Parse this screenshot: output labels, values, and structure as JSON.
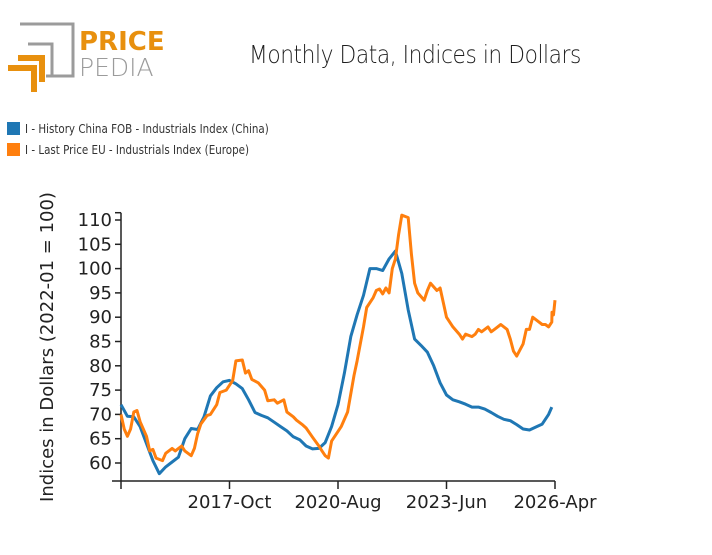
{
  "brand": {
    "line1": "PRICE",
    "line2": "PEDIA",
    "accent_color": "#e8900e",
    "gray_color": "#9b9b9b"
  },
  "chart_data": {
    "type": "line",
    "title": "Monthly Data, Indices in Dollars",
    "xlabel": "",
    "ylabel": "Indices in Dollars (2022-01 = 100)",
    "x_start": "2014-12",
    "x_end": "2026-04",
    "x_ticks": [
      {
        "label": "",
        "date": "2014-12"
      },
      {
        "label": "2017-Oct",
        "date": "2017-10"
      },
      {
        "label": "2020-Aug",
        "date": "2020-08"
      },
      {
        "label": "2023-Jun",
        "date": "2023-06"
      },
      {
        "label": "2026-Apr",
        "date": "2026-04"
      }
    ],
    "y_ticks": [
      60,
      65,
      70,
      75,
      80,
      85,
      90,
      95,
      100,
      105,
      110
    ],
    "ylim": [
      56.3,
      111.5
    ],
    "grid": false,
    "legend_position": "top-left",
    "series": [
      {
        "name": "I - History China FOB - Industrials Index (China)",
        "color": "#1f77b4",
        "points": [
          [
            "2014-12",
            72.0
          ],
          [
            "2015-02",
            69.6
          ],
          [
            "2015-04",
            69.5
          ],
          [
            "2015-06",
            67.5
          ],
          [
            "2015-08",
            64.0
          ],
          [
            "2015-10",
            60.5
          ],
          [
            "2015-12",
            57.8
          ],
          [
            "2016-02",
            59.2
          ],
          [
            "2016-04",
            60.2
          ],
          [
            "2016-06",
            61.2
          ],
          [
            "2016-08",
            65.0
          ],
          [
            "2016-10",
            67.1
          ],
          [
            "2016-12",
            66.9
          ],
          [
            "2017-02",
            69.5
          ],
          [
            "2017-04",
            73.8
          ],
          [
            "2017-06",
            75.5
          ],
          [
            "2017-08",
            76.7
          ],
          [
            "2017-10",
            77.0
          ],
          [
            "2017-12",
            76.3
          ],
          [
            "2018-02",
            75.3
          ],
          [
            "2018-04",
            73.0
          ],
          [
            "2018-06",
            70.4
          ],
          [
            "2018-08",
            69.8
          ],
          [
            "2018-10",
            69.3
          ],
          [
            "2018-12",
            68.4
          ],
          [
            "2019-02",
            67.5
          ],
          [
            "2019-04",
            66.6
          ],
          [
            "2019-06",
            65.4
          ],
          [
            "2019-08",
            64.8
          ],
          [
            "2019-10",
            63.5
          ],
          [
            "2019-12",
            62.9
          ],
          [
            "2020-02",
            63.0
          ],
          [
            "2020-04",
            64.2
          ],
          [
            "2020-06",
            67.5
          ],
          [
            "2020-08",
            72.0
          ],
          [
            "2020-10",
            78.5
          ],
          [
            "2020-12",
            86.0
          ],
          [
            "2021-02",
            90.5
          ],
          [
            "2021-04",
            94.5
          ],
          [
            "2021-06",
            100.0
          ],
          [
            "2021-08",
            100.0
          ],
          [
            "2021-10",
            99.6
          ],
          [
            "2021-12",
            102.0
          ],
          [
            "2022-02",
            103.6
          ],
          [
            "2022-04",
            99.0
          ],
          [
            "2022-06",
            91.5
          ],
          [
            "2022-08",
            85.5
          ],
          [
            "2022-10",
            84.2
          ],
          [
            "2022-12",
            82.8
          ],
          [
            "2023-02",
            80.0
          ],
          [
            "2023-04",
            76.5
          ],
          [
            "2023-06",
            74.0
          ],
          [
            "2023-08",
            73.0
          ],
          [
            "2023-10",
            72.6
          ],
          [
            "2023-12",
            72.1
          ],
          [
            "2024-02",
            71.5
          ],
          [
            "2024-04",
            71.5
          ],
          [
            "2024-06",
            71.1
          ],
          [
            "2024-08",
            70.4
          ],
          [
            "2024-10",
            69.6
          ],
          [
            "2024-12",
            69.0
          ],
          [
            "2025-02",
            68.7
          ],
          [
            "2025-04",
            67.9
          ],
          [
            "2025-06",
            67.0
          ],
          [
            "2025-08",
            66.8
          ],
          [
            "2025-10",
            67.4
          ],
          [
            "2025-12",
            68.0
          ],
          [
            "2026-02",
            70.0
          ],
          [
            "2026-03",
            71.5
          ]
        ]
      },
      {
        "name": "I - Last Price EU - Industrials Index (Europe)",
        "color": "#ff7f0e",
        "points": [
          [
            "2014-12",
            70.0
          ],
          [
            "2015-01",
            67.0
          ],
          [
            "2015-02",
            65.5
          ],
          [
            "2015-03",
            67.0
          ],
          [
            "2015-04",
            70.5
          ],
          [
            "2015-05",
            70.8
          ],
          [
            "2015-06",
            68.5
          ],
          [
            "2015-08",
            65.5
          ],
          [
            "2015-09",
            62.5
          ],
          [
            "2015-10",
            62.8
          ],
          [
            "2015-11",
            61.0
          ],
          [
            "2016-01",
            60.5
          ],
          [
            "2016-02",
            62.0
          ],
          [
            "2016-04",
            63.0
          ],
          [
            "2016-05",
            62.5
          ],
          [
            "2016-07",
            63.5
          ],
          [
            "2016-08",
            62.5
          ],
          [
            "2016-10",
            61.5
          ],
          [
            "2016-11",
            63.0
          ],
          [
            "2016-12",
            66.0
          ],
          [
            "2017-01",
            68.0
          ],
          [
            "2017-03",
            69.8
          ],
          [
            "2017-04",
            70.0
          ],
          [
            "2017-06",
            72.0
          ],
          [
            "2017-07",
            74.5
          ],
          [
            "2017-09",
            75.0
          ],
          [
            "2017-11",
            77.0
          ],
          [
            "2017-12",
            81.0
          ],
          [
            "2018-02",
            81.2
          ],
          [
            "2018-03",
            78.5
          ],
          [
            "2018-04",
            79.0
          ],
          [
            "2018-05",
            77.2
          ],
          [
            "2018-07",
            76.5
          ],
          [
            "2018-09",
            75.0
          ],
          [
            "2018-10",
            72.8
          ],
          [
            "2018-12",
            73.0
          ],
          [
            "2019-01",
            72.3
          ],
          [
            "2019-03",
            73.0
          ],
          [
            "2019-04",
            70.5
          ],
          [
            "2019-06",
            69.5
          ],
          [
            "2019-07",
            68.8
          ],
          [
            "2019-09",
            67.8
          ],
          [
            "2019-10",
            67.2
          ],
          [
            "2019-12",
            65.3
          ],
          [
            "2020-02",
            63.5
          ],
          [
            "2020-03",
            62.5
          ],
          [
            "2020-04",
            61.5
          ],
          [
            "2020-05",
            61.0
          ],
          [
            "2020-06",
            64.5
          ],
          [
            "2020-08",
            66.5
          ],
          [
            "2020-09",
            67.5
          ],
          [
            "2020-11",
            70.5
          ],
          [
            "2021-01",
            78.0
          ],
          [
            "2021-02",
            81.0
          ],
          [
            "2021-04",
            88.0
          ],
          [
            "2021-05",
            92.0
          ],
          [
            "2021-07",
            94.0
          ],
          [
            "2021-08",
            95.5
          ],
          [
            "2021-09",
            95.8
          ],
          [
            "2021-10",
            94.8
          ],
          [
            "2021-11",
            96.0
          ],
          [
            "2021-12",
            95.0
          ],
          [
            "2022-01",
            100.0
          ],
          [
            "2022-02",
            102.0
          ],
          [
            "2022-03",
            107.0
          ],
          [
            "2022-04",
            111.0
          ],
          [
            "2022-06",
            110.5
          ],
          [
            "2022-07",
            103.0
          ],
          [
            "2022-08",
            97.0
          ],
          [
            "2022-09",
            95.0
          ],
          [
            "2022-11",
            93.5
          ],
          [
            "2022-12",
            95.5
          ],
          [
            "2023-01",
            97.0
          ],
          [
            "2023-03",
            95.5
          ],
          [
            "2023-04",
            96.0
          ],
          [
            "2023-05",
            93.0
          ],
          [
            "2023-06",
            90.0
          ],
          [
            "2023-08",
            88.0
          ],
          [
            "2023-10",
            86.5
          ],
          [
            "2023-11",
            85.5
          ],
          [
            "2023-12",
            86.5
          ],
          [
            "2024-02",
            86.0
          ],
          [
            "2024-03",
            86.5
          ],
          [
            "2024-04",
            87.5
          ],
          [
            "2024-05",
            87.0
          ],
          [
            "2024-07",
            88.0
          ],
          [
            "2024-08",
            87.0
          ],
          [
            "2024-09",
            87.5
          ],
          [
            "2024-11",
            88.5
          ],
          [
            "2025-01",
            87.5
          ],
          [
            "2025-02",
            85.5
          ],
          [
            "2025-03",
            83.0
          ],
          [
            "2025-04",
            82.0
          ],
          [
            "2025-06",
            84.5
          ],
          [
            "2025-07",
            87.5
          ],
          [
            "2025-08",
            87.5
          ],
          [
            "2025-09",
            90.0
          ],
          [
            "2025-11",
            89.0
          ],
          [
            "2025-12",
            88.5
          ],
          [
            "2026-01",
            88.5
          ],
          [
            "2026-02",
            88.0
          ],
          [
            "2026-03",
            89.0
          ],
          [
            "2026-04",
            91.0
          ],
          [
            "2026-04",
            90.5
          ],
          [
            "2026-04",
            93.5
          ]
        ]
      }
    ]
  }
}
